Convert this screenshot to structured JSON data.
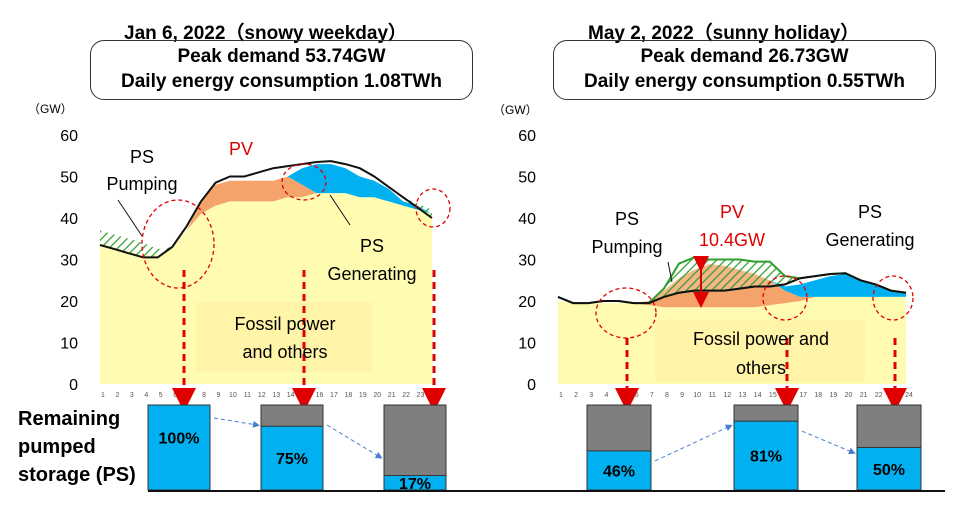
{
  "charts": {
    "left": {
      "title": "Jan 6, 2022（snowy weekday）",
      "line1": "Peak demand 53.74GW",
      "line2": "Daily energy consumption 1.08TWh",
      "unit": "（GW）",
      "labels": {
        "ps_pumping": [
          "PS",
          "Pumping"
        ],
        "pv": "PV",
        "ps_generating": [
          "PS",
          "Generating"
        ],
        "fossil": [
          "Fossil power",
          "and others"
        ]
      },
      "bars": [
        {
          "label": "100%",
          "value": 100
        },
        {
          "label": "75%",
          "value": 75
        },
        {
          "label": "17%",
          "value": 17
        }
      ]
    },
    "right": {
      "title": "May 2, 2022（sunny holiday）",
      "line1": "Peak demand 26.73GW",
      "line2": "Daily energy consumption 0.55TWh",
      "unit": "（GW）",
      "labels": {
        "ps_pumping": [
          "PS",
          "Pumping"
        ],
        "pv": [
          "PV",
          "10.4GW"
        ],
        "ps_generating": [
          "PS",
          "Generating"
        ],
        "fossil": [
          "Fossil power and",
          "others"
        ]
      },
      "bars": [
        {
          "label": "46%",
          "value": 46
        },
        {
          "label": "81%",
          "value": 81
        },
        {
          "label": "50%",
          "value": 50
        }
      ]
    }
  },
  "remaining_label": [
    "Remaining",
    "pumped",
    "storage (PS)"
  ],
  "colors": {
    "fossil": "#fffbb0",
    "fossil_label_bg": "#fff4a8",
    "pv": "#f4a46a",
    "ps_gen": "#00b0f0",
    "bar_blue": "#00b0f0",
    "bar_gray": "#7f7f7f",
    "arrow_red": "#e00000",
    "pv_text": "#e00000",
    "green": "#2e9e2e"
  },
  "chart_data": [
    {
      "type": "area",
      "title": "Jan 6, 2022（snowy weekday）",
      "ylabel": "（GW）",
      "ylim": [
        0,
        60
      ],
      "yticks": [
        0,
        10,
        20,
        30,
        40,
        50,
        60
      ],
      "x": [
        1,
        2,
        3,
        4,
        5,
        6,
        7,
        8,
        9,
        10,
        11,
        12,
        13,
        14,
        15,
        16,
        17,
        18,
        19,
        20,
        21,
        22,
        23,
        24
      ],
      "series": [
        {
          "name": "Fossil power and others",
          "values": [
            34,
            33,
            32,
            31,
            31,
            33,
            37,
            41,
            43,
            44,
            44,
            44,
            44,
            45,
            45,
            46,
            46,
            46,
            45,
            45,
            44,
            43,
            42,
            41
          ]
        },
        {
          "name": "PV",
          "values": [
            0,
            0,
            0,
            0,
            0,
            0,
            0,
            3,
            5,
            5,
            5,
            5,
            5,
            5,
            3,
            0,
            0,
            0,
            0,
            0,
            0,
            0,
            0,
            0
          ]
        },
        {
          "name": "PS Generating",
          "values": [
            0,
            0,
            0,
            0,
            0,
            0,
            0,
            0,
            0,
            0,
            0,
            0,
            0,
            0,
            4,
            7,
            7,
            6,
            5,
            4,
            3,
            1,
            1,
            0
          ]
        },
        {
          "name": "Demand",
          "values": [
            33.5,
            32.5,
            31.5,
            30.5,
            30.5,
            33,
            38,
            44,
            48.5,
            50,
            50,
            51,
            52,
            52.5,
            53,
            53.5,
            53.7,
            53,
            52,
            50,
            47.5,
            45,
            42.5,
            40
          ]
        },
        {
          "name": "PS Pumping",
          "values": [
            3.5,
            3.5,
            3.5,
            3.5,
            2,
            0,
            0,
            0,
            0,
            0,
            0,
            0,
            0,
            0,
            0,
            0,
            0,
            0,
            0,
            0,
            0,
            0,
            1,
            2
          ]
        }
      ]
    },
    {
      "type": "area",
      "title": "May 2, 2022（sunny holiday）",
      "ylabel": "（GW）",
      "ylim": [
        0,
        60
      ],
      "yticks": [
        0,
        10,
        20,
        30,
        40,
        50,
        60
      ],
      "x": [
        1,
        2,
        3,
        4,
        5,
        6,
        7,
        8,
        9,
        10,
        11,
        12,
        13,
        14,
        15,
        16,
        17,
        18,
        19,
        20,
        21,
        22,
        23,
        24
      ],
      "series": [
        {
          "name": "Fossil power and others",
          "values": [
            20,
            19.5,
            19.5,
            19.5,
            19.5,
            19.5,
            19,
            18.5,
            18.5,
            18.5,
            18.5,
            18.5,
            18.5,
            18.5,
            19,
            19.5,
            20,
            21,
            21,
            21,
            21,
            21,
            21,
            21
          ]
        },
        {
          "name": "PV",
          "values": [
            0,
            0,
            0,
            0,
            0,
            0,
            1,
            4,
            7,
            9,
            10.4,
            10,
            9,
            8,
            6,
            3,
            1,
            0,
            0,
            0,
            0,
            0,
            0,
            0
          ]
        },
        {
          "name": "PS Generating",
          "values": [
            0,
            0,
            0,
            0,
            0,
            0,
            0,
            0,
            0,
            0,
            0,
            0,
            0,
            0,
            0,
            1,
            3,
            4,
            5,
            5.5,
            4,
            3,
            1.5,
            1
          ]
        },
        {
          "name": "Demand",
          "values": [
            21,
            19.5,
            19.5,
            20,
            20,
            19.5,
            19.5,
            21,
            22,
            22.5,
            22.5,
            22.5,
            23,
            23.5,
            23.5,
            24,
            25.5,
            26,
            26.5,
            26.7,
            25,
            24,
            22.5,
            22
          ]
        },
        {
          "name": "PS Pumping",
          "values": [
            0,
            0,
            0,
            0,
            0,
            0,
            0,
            2,
            7,
            8,
            7.5,
            7.5,
            7,
            6,
            6,
            2,
            0,
            0,
            0,
            0,
            0,
            0,
            0,
            0
          ]
        }
      ]
    }
  ]
}
